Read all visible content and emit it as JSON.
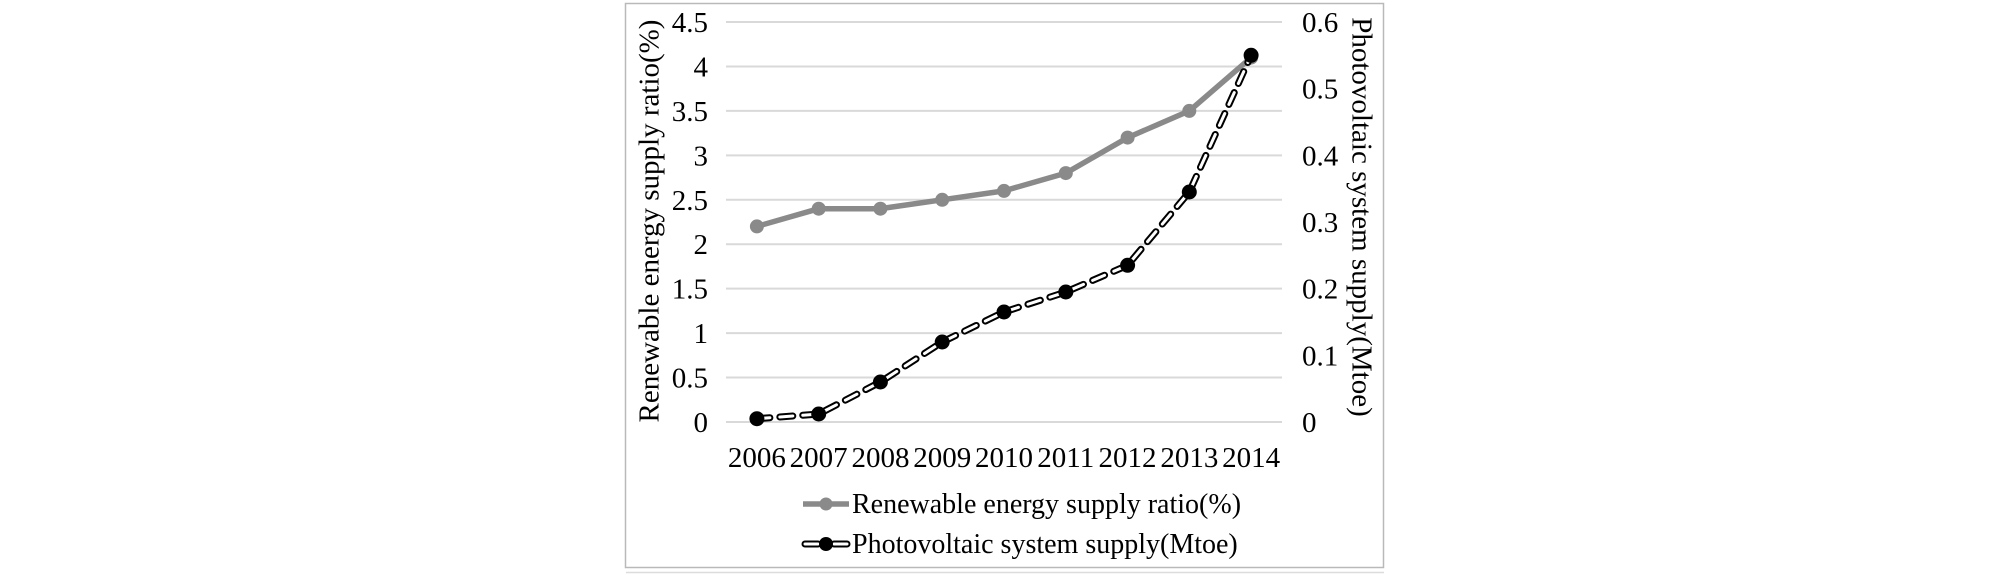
{
  "figure": {
    "background": "#ffffff",
    "panel_border_color": "#b9b9b9",
    "gridline_color": "#d9d9d9"
  },
  "chart_data": {
    "type": "line",
    "categories": [
      "2006",
      "2007",
      "2008",
      "2009",
      "2010",
      "2011",
      "2012",
      "2013",
      "2014"
    ],
    "series": [
      {
        "name": "Renewable energy supply ratio(%)",
        "axis": "left",
        "color": "#8a8a8a",
        "line_style": "solid",
        "marker": "circle",
        "values": [
          2.2,
          2.4,
          2.4,
          2.5,
          2.6,
          2.8,
          3.2,
          3.5,
          4.1
        ]
      },
      {
        "name": "Photovoltaic system supply(Mtoe)",
        "axis": "right",
        "color": "#000000",
        "line_style": "dashed-hollow",
        "marker": "circle",
        "values": [
          0.005,
          0.012,
          0.06,
          0.12,
          0.165,
          0.195,
          0.235,
          0.345,
          0.55
        ]
      }
    ],
    "left_axis": {
      "title": "Renewable energy supply ratio(%)",
      "min": 0,
      "max": 4.5,
      "tick_step": 0.5,
      "ticks": [
        "4.5",
        "4",
        "3.5",
        "3",
        "2.5",
        "2",
        "1.5",
        "1",
        "0.5",
        "0"
      ]
    },
    "right_axis": {
      "title": "Photovoltaic system supply(Mtoe)",
      "min": 0,
      "max": 0.6,
      "tick_step": 0.1,
      "ticks": [
        "0.6",
        "0.5",
        "0.4",
        "0.3",
        "0.2",
        "0.1",
        "0"
      ]
    },
    "grid": true,
    "legend": {
      "position": "bottom",
      "entries": [
        "Renewable energy supply ratio(%)",
        "Photovoltaic system supply(Mtoe)"
      ]
    }
  }
}
